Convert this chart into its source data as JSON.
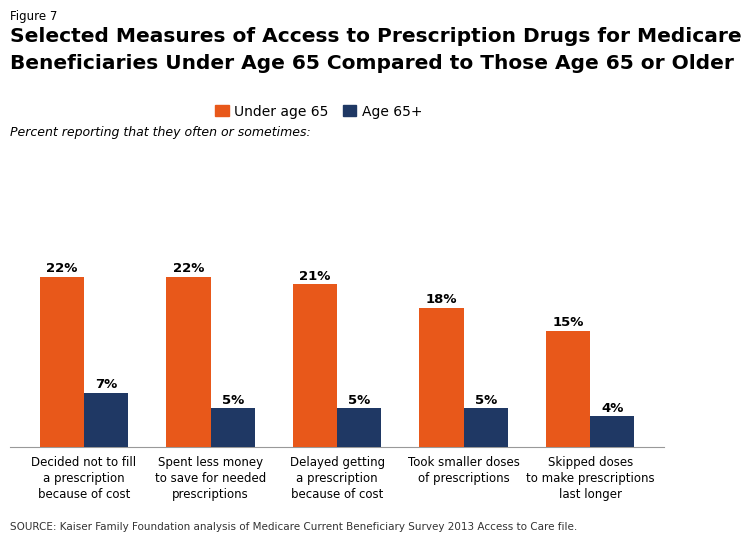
{
  "figure_label": "Figure 7",
  "title_line1": "Selected Measures of Access to Prescription Drugs for Medicare",
  "title_line2": "Beneficiaries Under Age 65 Compared to Those Age 65 or Older",
  "subtitle": "Percent reporting that they often or sometimes:",
  "categories": [
    "Decided not to fill\na prescription\nbecause of cost",
    "Spent less money\nto save for needed\nprescriptions",
    "Delayed getting\na prescription\nbecause of cost",
    "Took smaller doses\nof prescriptions",
    "Skipped doses\nto make prescriptions\nlast longer"
  ],
  "under65_values": [
    22,
    22,
    21,
    18,
    15
  ],
  "age65plus_values": [
    7,
    5,
    5,
    5,
    4
  ],
  "under65_color": "#E8581A",
  "age65plus_color": "#1F3864",
  "legend_labels": [
    "Under age 65",
    "Age 65+"
  ],
  "source_text": "SOURCE: Kaiser Family Foundation analysis of Medicare Current Beneficiary Survey 2013 Access to Care file.",
  "bar_width": 0.35,
  "ylim": [
    0,
    27
  ],
  "background_color": "#FFFFFF"
}
